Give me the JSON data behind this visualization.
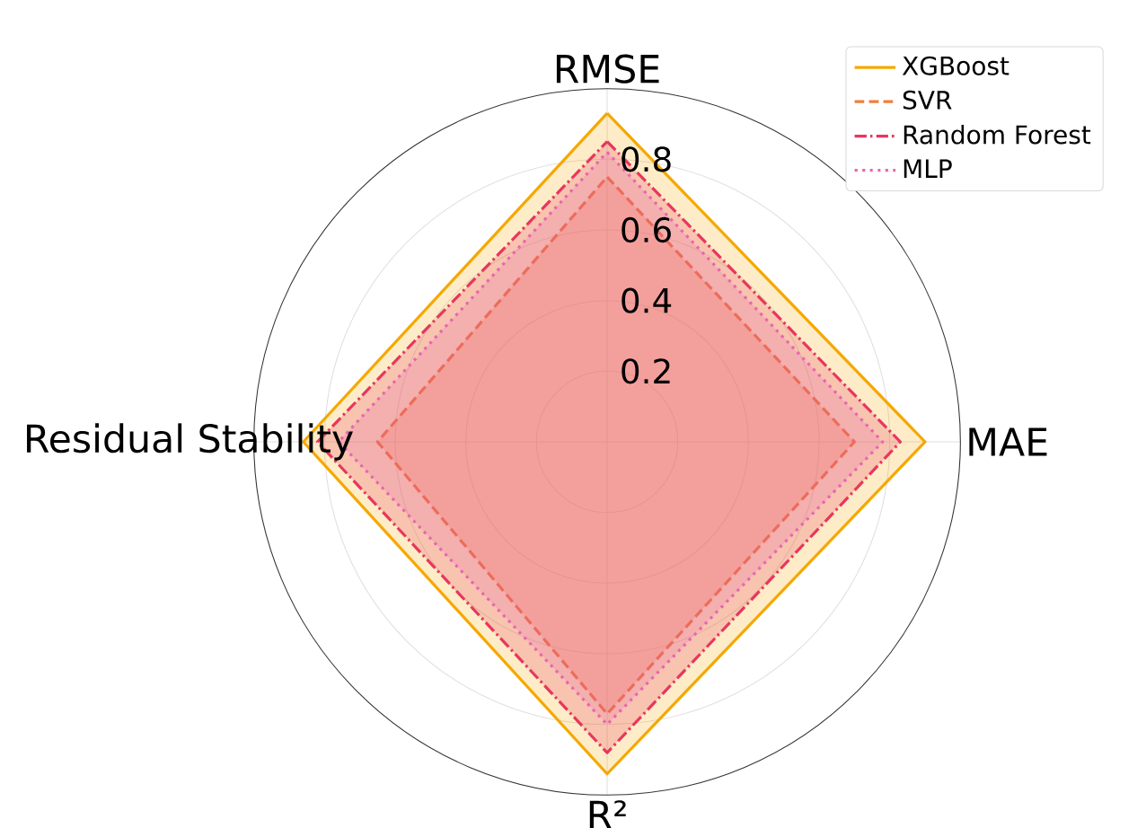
{
  "chart_data": {
    "type": "radar",
    "categories": [
      "RMSE",
      "MAE",
      "R²",
      "Residual Stability"
    ],
    "series": [
      {
        "name": "XGBoost",
        "color": "#f5a800",
        "line_style": "solid",
        "values": [
          0.93,
          0.9,
          0.94,
          0.86
        ]
      },
      {
        "name": "SVR",
        "color": "#f07f3c",
        "line_style": "dashed",
        "values": [
          0.75,
          0.7,
          0.77,
          0.65
        ]
      },
      {
        "name": "Random Forest",
        "color": "#e8365d",
        "line_style": "dashdot",
        "values": [
          0.85,
          0.83,
          0.88,
          0.82
        ]
      },
      {
        "name": "MLP",
        "color": "#e866b0",
        "line_style": "dotted",
        "values": [
          0.82,
          0.78,
          0.8,
          0.76
        ]
      }
    ],
    "ylim": [
      0,
      1
    ],
    "yticks": [
      0.2,
      0.4,
      0.6,
      0.8
    ],
    "grid": true,
    "legend": "top right",
    "marker": "none"
  }
}
